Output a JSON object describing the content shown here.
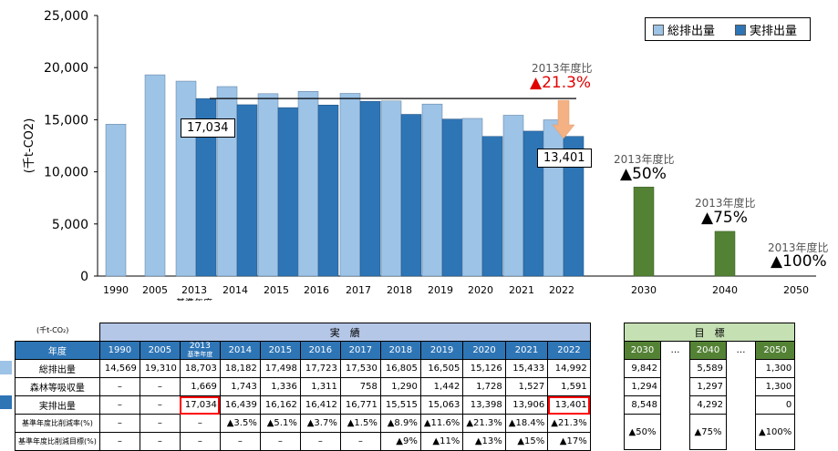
{
  "chart_data": {
    "type": "bar",
    "ylabel": "(千t-CO2)",
    "ylim": [
      0,
      25000
    ],
    "yticks": [
      "0",
      "5,000",
      "10,000",
      "15,000",
      "20,000",
      "25,000"
    ],
    "ytick_values": [
      0,
      5000,
      10000,
      15000,
      20000,
      25000
    ],
    "categories": [
      "1990",
      "2005",
      "2013",
      "2014",
      "2015",
      "2016",
      "2017",
      "2018",
      "2019",
      "2020",
      "2021",
      "2022",
      "2030",
      "2040",
      "2050"
    ],
    "base_year_label": "基準年度",
    "series": [
      {
        "name": "総排出量",
        "color": "#9dc3e6",
        "values": [
          14569,
          19310,
          18703,
          18182,
          17498,
          17723,
          17530,
          16805,
          16505,
          15126,
          15433,
          14992,
          null,
          null,
          null
        ]
      },
      {
        "name": "実排出量",
        "color": "#2e75b6",
        "values": [
          null,
          null,
          17034,
          16439,
          16162,
          16412,
          16771,
          15515,
          15063,
          13398,
          13906,
          13401,
          null,
          null,
          null
        ]
      },
      {
        "name": "目標",
        "color": "#548235",
        "values": [
          null,
          null,
          null,
          null,
          null,
          null,
          null,
          null,
          null,
          null,
          null,
          null,
          8548,
          4292,
          0
        ]
      }
    ],
    "reference_line": 17034,
    "callouts": {
      "base": "17,034",
      "latest": "13,401"
    },
    "annotations": [
      {
        "small": "2013年度比",
        "big": "▲21.3%",
        "color": "#e00000"
      },
      {
        "small": "2013年度比",
        "big": "▲50%",
        "color": "#000000"
      },
      {
        "small": "2013年度比",
        "big": "▲75%",
        "color": "#000000"
      },
      {
        "small": "2013年度比",
        "big": "▲100%",
        "color": "#000000"
      }
    ],
    "legend": [
      "総排出量",
      "実排出量"
    ]
  },
  "table": {
    "unit": "(千t-CO₂)",
    "actual_title": "実　績",
    "target_title": "目　標",
    "year_header": "年度",
    "years": [
      "1990",
      "2005",
      "2013",
      "2014",
      "2015",
      "2016",
      "2017",
      "2018",
      "2019",
      "2020",
      "2021",
      "2022"
    ],
    "base_sub": "基準年度",
    "target_years": [
      "2030",
      "…",
      "2040",
      "…",
      "2050"
    ],
    "rows": [
      {
        "label": "総排出量",
        "values": [
          "14,569",
          "19,310",
          "18,703",
          "18,182",
          "17,498",
          "17,723",
          "17,530",
          "16,805",
          "16,505",
          "15,126",
          "15,433",
          "14,992"
        ],
        "targets": [
          "9,842",
          "",
          "5,589",
          "",
          "1,300"
        ]
      },
      {
        "label": "森林等吸収量",
        "values": [
          "–",
          "–",
          "1,669",
          "1,743",
          "1,336",
          "1,311",
          "758",
          "1,290",
          "1,442",
          "1,728",
          "1,527",
          "1,591"
        ],
        "targets": [
          "1,294",
          "",
          "1,297",
          "",
          "1,300"
        ]
      },
      {
        "label": "実排出量",
        "values": [
          "–",
          "–",
          "17,034",
          "16,439",
          "16,162",
          "16,412",
          "16,771",
          "15,515",
          "15,063",
          "13,398",
          "13,906",
          "13,401"
        ],
        "targets": [
          "8,548",
          "",
          "4,292",
          "",
          "0"
        ]
      },
      {
        "label": "基準年度比削減率(%)",
        "values": [
          "–",
          "–",
          "–",
          "▲3.5%",
          "▲5.1%",
          "▲3.7%",
          "▲1.5%",
          "▲8.9%",
          "▲11.6%",
          "▲21.3%",
          "▲18.4%",
          "▲21.3%"
        ],
        "targets": [
          "▲50%",
          "",
          "▲75%",
          "",
          "▲100%"
        ]
      },
      {
        "label": "基準年度比削減目標(%)",
        "values": [
          "–",
          "–",
          "–",
          "–",
          "–",
          "–",
          "–",
          "▲9%",
          "▲11%",
          "▲13%",
          "▲15%",
          "▲17%"
        ]
      }
    ]
  }
}
